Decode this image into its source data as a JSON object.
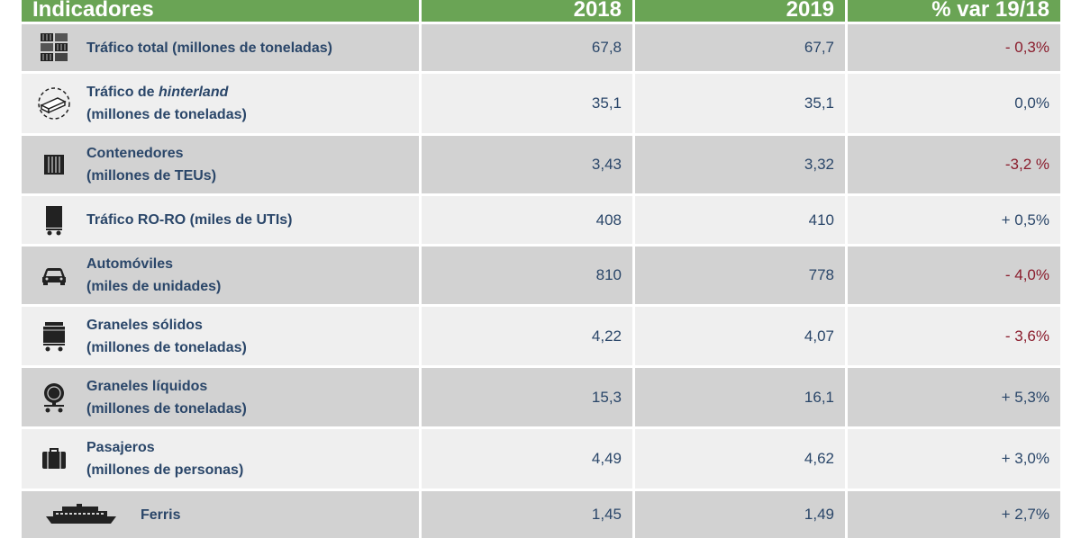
{
  "header": {
    "indicadores": "Indicadores",
    "y2018": "2018",
    "y2019": "2019",
    "var": "% var 19/18"
  },
  "rows": [
    {
      "line1": "Tráfico total (millones de toneladas)",
      "line2": "",
      "v2018": "67,8",
      "v2019": "67,7",
      "var": "- 0,3%",
      "icon": "containers-stack-icon",
      "negative": true
    },
    {
      "line1_pre": "Tráfico de ",
      "line1_em": "hinterland",
      "line2": "(millones de toneladas)",
      "v2018": "35,1",
      "v2019": "35,1",
      "var": "0,0%",
      "icon": "hinterland-icon",
      "negative": false
    },
    {
      "line1": "Contenedores",
      "line2": "(millones de TEUs)",
      "v2018": "3,43",
      "v2019": "3,32",
      "var": "-3,2 %",
      "icon": "container-icon",
      "negative": true
    },
    {
      "line1": "Tráfico RO-RO (miles de UTIs)",
      "line2": "",
      "v2018": "408",
      "v2019": "410",
      "var": "+ 0,5%",
      "icon": "trailer-icon",
      "negative": false
    },
    {
      "line1": "Automóviles",
      "line2": "(miles de unidades)",
      "v2018": "810",
      "v2019": "778",
      "var": "- 4,0%",
      "icon": "car-icon",
      "negative": true
    },
    {
      "line1": "Graneles sólidos",
      "line2": "(millones de toneladas)",
      "v2018": "4,22",
      "v2019": "4,07",
      "var": "- 3,6%",
      "icon": "hopper-wagon-icon",
      "negative": true
    },
    {
      "line1": "Graneles líquidos",
      "line2": "(millones de toneladas)",
      "v2018": "15,3",
      "v2019": "16,1",
      "var": "+ 5,3%",
      "icon": "tank-wagon-icon",
      "negative": false
    },
    {
      "line1": "Pasajeros",
      "line2": "(millones de personas)",
      "v2018": "4,49",
      "v2019": "4,62",
      "var": "+ 3,0%",
      "icon": "suitcase-icon",
      "negative": false
    },
    {
      "line1": "Ferris",
      "line2": "",
      "v2018": "1,45",
      "v2019": "1,49",
      "var": "+ 2,7%",
      "icon": "ferry-icon",
      "negative": false
    }
  ]
}
